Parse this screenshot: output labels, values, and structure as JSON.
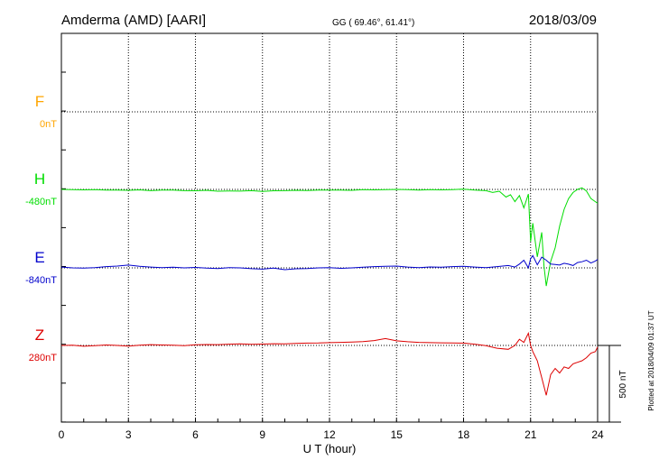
{
  "header": {
    "station": "Amderma (AMD)  [AARI]",
    "coords": "GG ( 69.46°,  61.41°)",
    "date": "2018/03/09"
  },
  "footer": {
    "plotted": "Plotted at 2018/04/09 01:37 UT"
  },
  "chart_data": {
    "type": "line",
    "xlabel": "U T (hour)",
    "xlim": [
      0,
      24
    ],
    "x_ticks": [
      "0",
      "3",
      "6",
      "9",
      "12",
      "15",
      "18",
      "21",
      "24"
    ],
    "scale_bar": "500 nT",
    "series": [
      {
        "name": "F",
        "baseline": "0nT",
        "color": "#ffa500",
        "x": [],
        "y": []
      },
      {
        "name": "H",
        "baseline": "-480nT",
        "color": "#00dd00",
        "x": [
          0,
          0.5,
          1,
          1.5,
          2,
          2.5,
          3,
          3.5,
          4,
          4.5,
          5,
          5.5,
          6,
          6.5,
          7,
          7.5,
          8,
          8.5,
          9,
          9.5,
          10,
          10.5,
          11,
          11.5,
          12,
          12.5,
          13,
          13.5,
          14,
          14.5,
          15,
          15.5,
          16,
          16.5,
          17,
          17.5,
          18,
          18.5,
          19,
          19.3,
          19.6,
          19.9,
          20.1,
          20.3,
          20.5,
          20.7,
          20.9,
          21.0,
          21.1,
          21.3,
          21.5,
          21.6,
          21.7,
          21.9,
          22.1,
          22.3,
          22.5,
          22.7,
          22.9,
          23.1,
          23.3,
          23.5,
          23.7,
          23.9,
          24
        ],
        "y": [
          -480,
          -482,
          -483,
          -481,
          -485,
          -484,
          -486,
          -483,
          -488,
          -485,
          -484,
          -488,
          -489,
          -486,
          -492,
          -490,
          -491,
          -488,
          -493,
          -489,
          -488,
          -486,
          -487,
          -485,
          -484,
          -485,
          -486,
          -482,
          -483,
          -481,
          -480,
          -482,
          -484,
          -482,
          -483,
          -481,
          -478,
          -485,
          -488,
          -500,
          -492,
          -530,
          -515,
          -560,
          -520,
          -600,
          -510,
          -820,
          -700,
          -920,
          -760,
          -980,
          -1110,
          -950,
          -860,
          -720,
          -610,
          -540,
          -500,
          -480,
          -470,
          -490,
          -540,
          -560,
          -570
        ]
      },
      {
        "name": "E",
        "baseline": "-840nT",
        "color": "#0000cc",
        "x": [
          0,
          0.5,
          1,
          1.5,
          2,
          2.5,
          3,
          3.5,
          4,
          4.5,
          5,
          5.5,
          6,
          6.5,
          7,
          7.5,
          8,
          8.5,
          9,
          9.5,
          10,
          10.5,
          11,
          11.5,
          12,
          12.5,
          13,
          13.5,
          14,
          14.5,
          15,
          15.5,
          16,
          16.5,
          17,
          17.5,
          18,
          18.5,
          19,
          19.5,
          20,
          20.3,
          20.5,
          20.7,
          20.9,
          21.0,
          21.1,
          21.3,
          21.5,
          21.7,
          21.9,
          22.1,
          22.3,
          22.5,
          22.7,
          22.9,
          23.1,
          23.3,
          23.5,
          23.7,
          23.9,
          24
        ],
        "y": [
          -835,
          -840,
          -842,
          -838,
          -832,
          -828,
          -822,
          -830,
          -835,
          -838,
          -836,
          -840,
          -837,
          -842,
          -844,
          -838,
          -840,
          -845,
          -848,
          -842,
          -852,
          -846,
          -844,
          -840,
          -838,
          -843,
          -840,
          -836,
          -832,
          -830,
          -828,
          -835,
          -838,
          -834,
          -836,
          -832,
          -830,
          -835,
          -838,
          -832,
          -825,
          -835,
          -815,
          -790,
          -840,
          -780,
          -760,
          -820,
          -770,
          -790,
          -815,
          -818,
          -822,
          -810,
          -816,
          -825,
          -805,
          -800,
          -790,
          -808,
          -795,
          -785
        ]
      },
      {
        "name": "Z",
        "baseline": "280nT",
        "color": "#dd0000",
        "x": [
          0,
          0.5,
          1,
          1.5,
          2,
          2.5,
          3,
          3.5,
          4,
          4.5,
          5,
          5.5,
          6,
          6.5,
          7,
          7.5,
          8,
          8.5,
          9,
          9.5,
          10,
          10.5,
          11,
          11.5,
          12,
          12.5,
          13,
          13.5,
          14,
          14.5,
          15,
          15.5,
          16,
          16.5,
          17,
          17.5,
          18,
          18.5,
          19,
          19.5,
          20,
          20.3,
          20.5,
          20.7,
          20.9,
          21.0,
          21.1,
          21.3,
          21.5,
          21.7,
          21.9,
          22.1,
          22.3,
          22.5,
          22.7,
          22.9,
          23.1,
          23.3,
          23.5,
          23.7,
          23.9,
          24
        ],
        "y": [
          280,
          282,
          275,
          278,
          283,
          280,
          276,
          282,
          285,
          283,
          281,
          279,
          284,
          286,
          285,
          288,
          290,
          287,
          289,
          291,
          290,
          293,
          295,
          296,
          298,
          300,
          302,
          305,
          312,
          325,
          310,
          304,
          300,
          298,
          297,
          296,
          295,
          288,
          278,
          262,
          255,
          280,
          320,
          300,
          360,
          280,
          240,
          180,
          70,
          -45,
          90,
          130,
          100,
          140,
          130,
          160,
          170,
          180,
          200,
          230,
          240,
          270
        ]
      }
    ]
  }
}
